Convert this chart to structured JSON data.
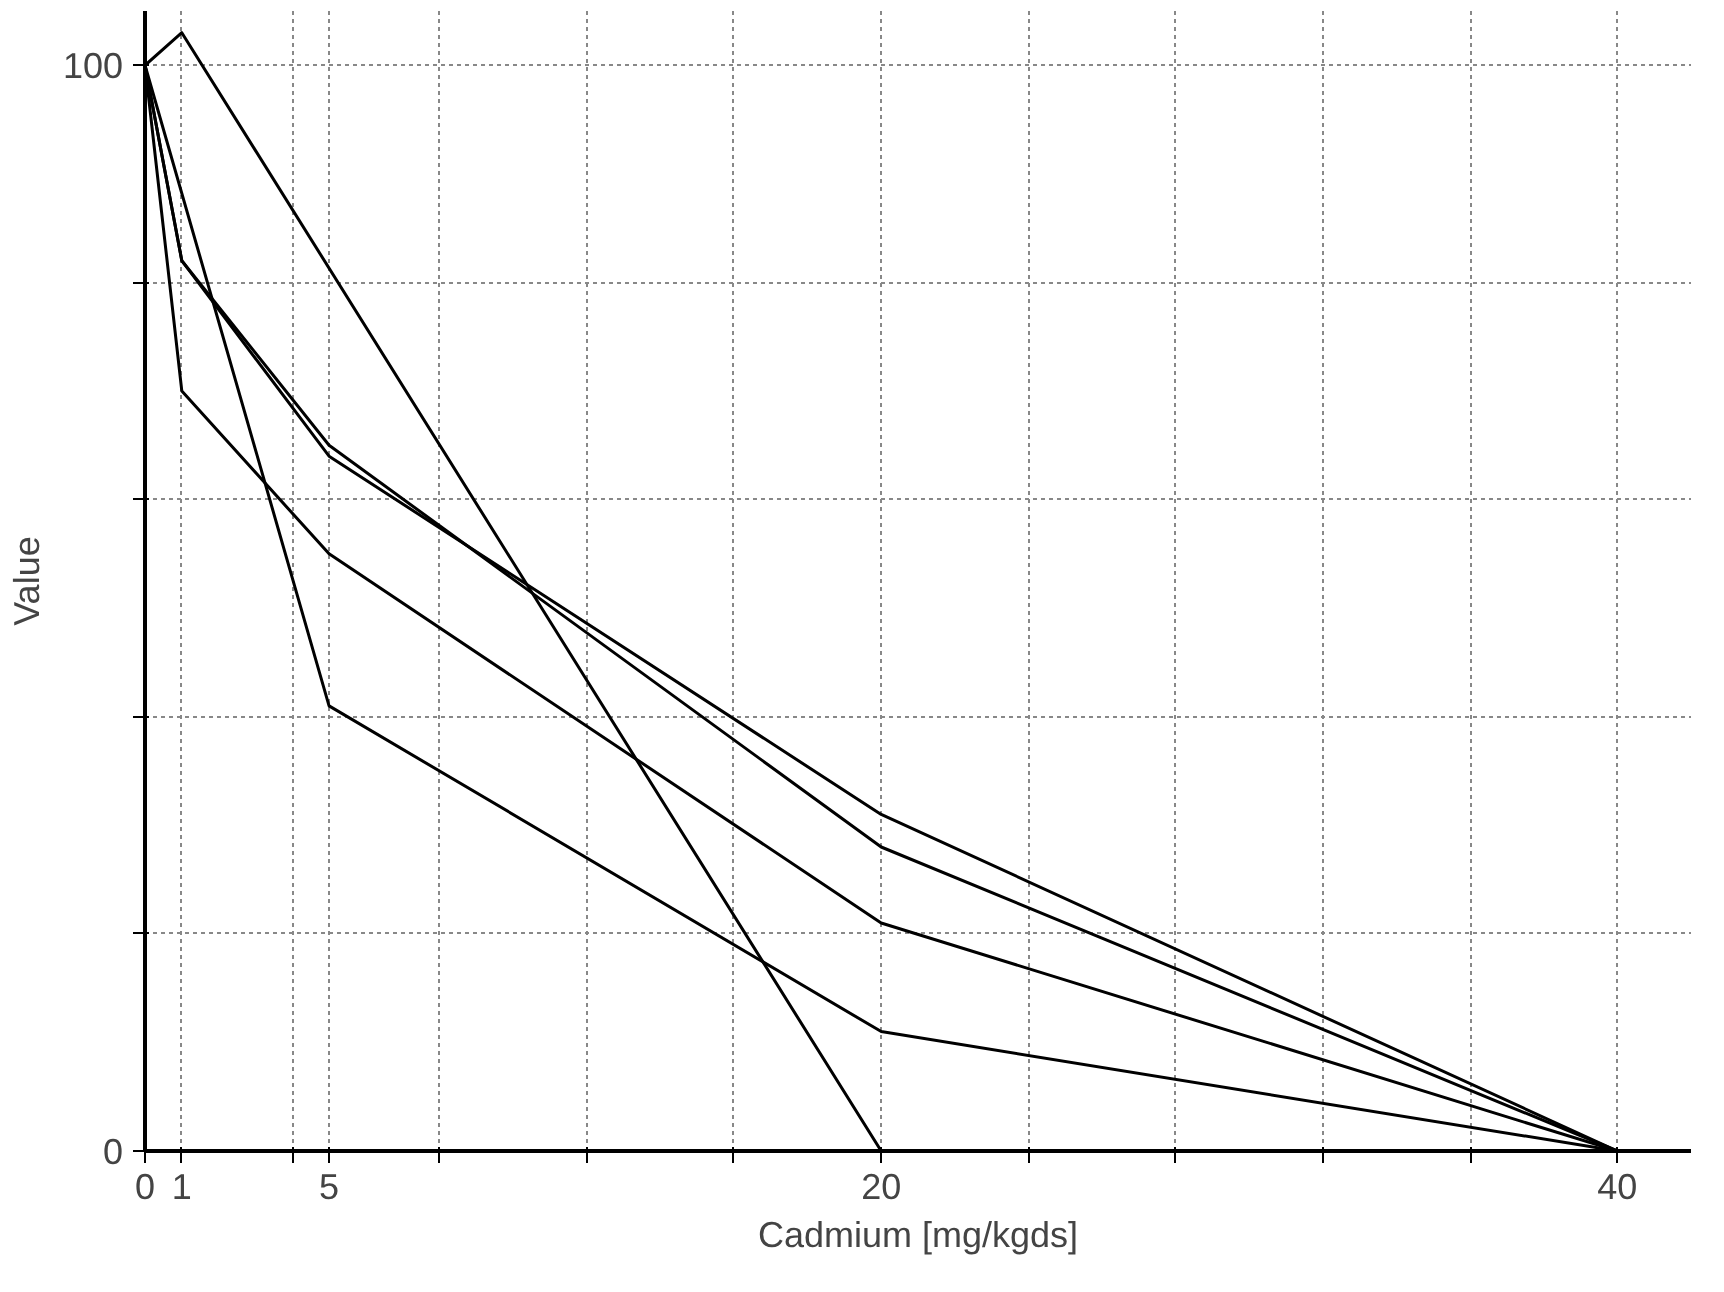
{
  "chart_data": {
    "type": "line",
    "xlabel": "Cadmium [mg/kgds]",
    "ylabel": "Value",
    "x": [
      0,
      1,
      5,
      20,
      40
    ],
    "series": [
      {
        "color": "#000000",
        "x": [
          0,
          1,
          20
        ],
        "values": [
          100,
          103,
          0
        ]
      },
      {
        "color": "#000000",
        "values": [
          100,
          82,
          64,
          31,
          0
        ]
      },
      {
        "color": "#000000",
        "values": [
          100,
          82,
          65,
          28,
          0
        ]
      },
      {
        "color": "#000000",
        "values": [
          100,
          70,
          55,
          21,
          0
        ]
      },
      {
        "color": "#000000",
        "x": [
          0,
          5,
          20,
          40
        ],
        "values": [
          100,
          41,
          11,
          0
        ]
      }
    ],
    "xlim": [
      0,
      42
    ],
    "ylim": [
      0,
      105
    ],
    "xticks": [
      0,
      1,
      {
        "value": 4,
        "label": null
      },
      5,
      {
        "value": 8,
        "label": null
      },
      {
        "value": 12,
        "label": null
      },
      {
        "value": 16,
        "label": null
      },
      20,
      {
        "value": 24,
        "label": null
      },
      {
        "value": 28,
        "label": null
      },
      {
        "value": 32,
        "label": null
      },
      {
        "value": 36,
        "label": null
      },
      40
    ],
    "yticks": [
      0,
      {
        "value": 20,
        "label": null
      },
      {
        "value": 40,
        "label": null
      },
      {
        "value": 60,
        "label": null
      },
      {
        "value": 80,
        "label": null
      },
      100
    ],
    "grid": true,
    "marker": "none",
    "line_style": "solid"
  }
}
